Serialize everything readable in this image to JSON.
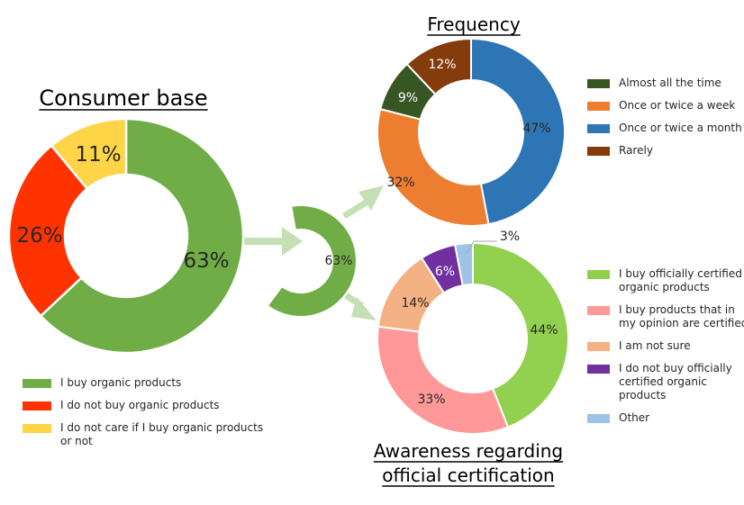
{
  "chart_data": [
    {
      "type": "pie",
      "title": "Consumer base",
      "donut": true,
      "categories": [
        "I buy organic products",
        "I do not buy organic products",
        "I do not care if I buy organic products or not"
      ],
      "values": [
        63,
        26,
        11
      ],
      "labels": [
        "63%",
        "26%",
        "11%"
      ],
      "colors": [
        "#70AD47",
        "#FF3300",
        "#FFD447"
      ],
      "legend_position": "bottom-left"
    },
    {
      "type": "pie",
      "title": "Frequency",
      "donut": true,
      "categories": [
        "Almost all the time",
        "Once or twice a week",
        "Once or twice a month",
        "Rarely"
      ],
      "values": [
        9,
        32,
        47,
        12
      ],
      "labels": [
        "9%",
        "32%",
        "47%",
        "12%"
      ],
      "colors": [
        "#375623",
        "#ED7D31",
        "#2E75B6",
        "#843C0C"
      ],
      "legend_position": "right"
    },
    {
      "type": "pie",
      "title": "Awareness regarding official certification",
      "donut": true,
      "categories": [
        "I buy officially certified organic products",
        "I buy products that in my opinion are certified",
        "I am not sure",
        "I do not buy officially certified organic products",
        "Other"
      ],
      "values": [
        44,
        33,
        14,
        6,
        3
      ],
      "labels": [
        "44%",
        "33%",
        "14%",
        "6%",
        "3%"
      ],
      "colors": [
        "#92D050",
        "#FF9999",
        "#F4B183",
        "#7030A0",
        "#9DC3E6"
      ],
      "legend_position": "right"
    },
    {
      "type": "pie",
      "title": "",
      "donut": true,
      "categories": [
        "I buy organic products"
      ],
      "values": [
        63
      ],
      "labels": [
        "63%"
      ],
      "colors": [
        "#70AD47"
      ]
    }
  ],
  "legends": {
    "consumer": [
      {
        "lines": [
          "I buy organic products"
        ]
      },
      {
        "lines": [
          "I do not buy organic products"
        ]
      },
      {
        "lines": [
          "I do not care if I buy organic products",
          "or not"
        ]
      }
    ],
    "frequency": [
      {
        "lines": [
          "Almost all the time"
        ]
      },
      {
        "lines": [
          "Once or twice a week"
        ]
      },
      {
        "lines": [
          "Once or twice a month"
        ]
      },
      {
        "lines": [
          "Rarely"
        ]
      }
    ],
    "awareness": [
      {
        "lines": [
          "I buy officially certified",
          "organic products"
        ]
      },
      {
        "lines": [
          "I buy products that in",
          "my opinion are certified"
        ]
      },
      {
        "lines": [
          "I am not sure"
        ]
      },
      {
        "lines": [
          "I do not buy officially",
          "certified organic",
          "products"
        ]
      },
      {
        "lines": [
          "Other"
        ]
      }
    ]
  },
  "title_lines": {
    "consumer": [
      "Consumer base"
    ],
    "frequency": [
      "Frequency"
    ],
    "awareness": [
      "Awareness regarding",
      "official certification"
    ]
  },
  "arrow_color": "#C5E0B4"
}
